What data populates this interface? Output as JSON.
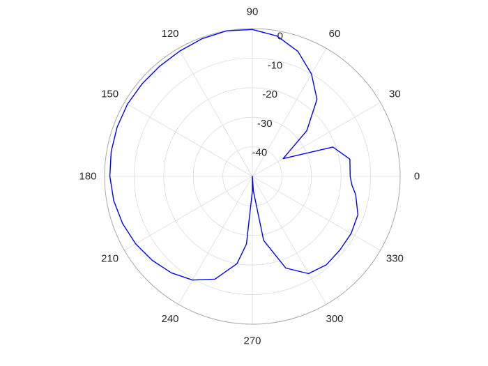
{
  "chart_data": {
    "type": "polar-line",
    "title": "",
    "angle_unit": "degrees",
    "r_range": [
      -50,
      0
    ],
    "r_ticks": [
      0,
      -10,
      -20,
      -30,
      -40
    ],
    "r_tick_labels": [
      "0",
      "-10",
      "-20",
      "-30",
      "-40"
    ],
    "theta_ticks": [
      0,
      30,
      60,
      90,
      120,
      150,
      180,
      210,
      240,
      270,
      300,
      330
    ],
    "theta_tick_labels": [
      "0",
      "30",
      "60",
      "90",
      "120",
      "150",
      "180",
      "210",
      "240",
      "270",
      "300",
      "330"
    ],
    "grid": true,
    "legend": "none",
    "series": [
      {
        "color": "#0000ff",
        "points": [
          [
            0,
            -16.9
          ],
          [
            10,
            -16.5
          ],
          [
            20,
            -21
          ],
          [
            30,
            -38
          ],
          [
            40,
            -26
          ],
          [
            50,
            -16
          ],
          [
            60,
            -10
          ],
          [
            70,
            -5
          ],
          [
            80,
            -1.8
          ],
          [
            90,
            -0.3
          ],
          [
            100,
            0
          ],
          [
            110,
            -0.4
          ],
          [
            120,
            -1
          ],
          [
            130,
            -1.3
          ],
          [
            140,
            -1.3
          ],
          [
            150,
            -1.2
          ],
          [
            160,
            -1.3
          ],
          [
            170,
            -1.5
          ],
          [
            180,
            -1.8
          ],
          [
            190,
            -2.4
          ],
          [
            200,
            -3.3
          ],
          [
            210,
            -4.4
          ],
          [
            220,
            -5.8
          ],
          [
            230,
            -7.4
          ],
          [
            240,
            -9.5
          ],
          [
            250,
            -13
          ],
          [
            260,
            -20
          ],
          [
            265,
            -27
          ],
          [
            270,
            -45
          ],
          [
            272,
            -50
          ],
          [
            274,
            -45
          ],
          [
            280,
            -28
          ],
          [
            290,
            -17
          ],
          [
            300,
            -12
          ],
          [
            310,
            -11
          ],
          [
            320,
            -11.3
          ],
          [
            330,
            -11.4
          ],
          [
            340,
            -12
          ],
          [
            350,
            -14.5
          ],
          [
            355,
            -16.2
          ],
          [
            360,
            -16.9
          ]
        ]
      }
    ]
  }
}
